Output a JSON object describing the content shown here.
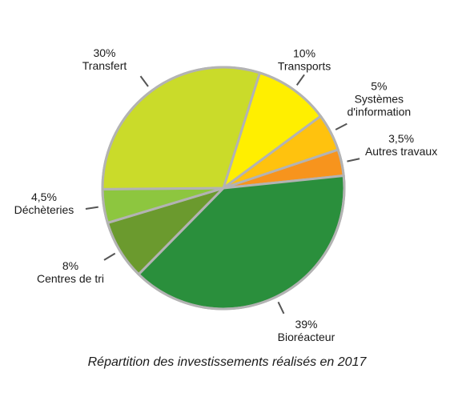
{
  "chart_data": {
    "type": "pie",
    "title": "Répartition des investissements réalisés en 2017",
    "slices": [
      {
        "name": "Transports",
        "value": 10,
        "value_label": "10%",
        "label_lines": [
          "Transports"
        ],
        "color": "#ffef00"
      },
      {
        "name": "Systèmes d'information",
        "value": 5,
        "value_label": "5%",
        "label_lines": [
          "Systèmes",
          "d'information"
        ],
        "color": "#ffc20e"
      },
      {
        "name": "Autres travaux",
        "value": 3.5,
        "value_label": "3,5%",
        "label_lines": [
          "Autres travaux"
        ],
        "color": "#f7941d"
      },
      {
        "name": "Bioréacteur",
        "value": 39,
        "value_label": "39%",
        "label_lines": [
          "Bioréacteur"
        ],
        "color": "#2a8f3c"
      },
      {
        "name": "Centres de tri",
        "value": 8,
        "value_label": "8%",
        "label_lines": [
          "Centres de tri"
        ],
        "color": "#6b9a2e"
      },
      {
        "name": "Déchèteries",
        "value": 4.5,
        "value_label": "4,5%",
        "label_lines": [
          "Déchèteries"
        ],
        "color": "#8dc63f"
      },
      {
        "name": "Transfert",
        "value": 30,
        "value_label": "30%",
        "label_lines": [
          "Transfert"
        ],
        "color": "#cadb2a"
      }
    ],
    "slice_border_color": "#b3b3b3",
    "leader_line_color": "#555555"
  }
}
